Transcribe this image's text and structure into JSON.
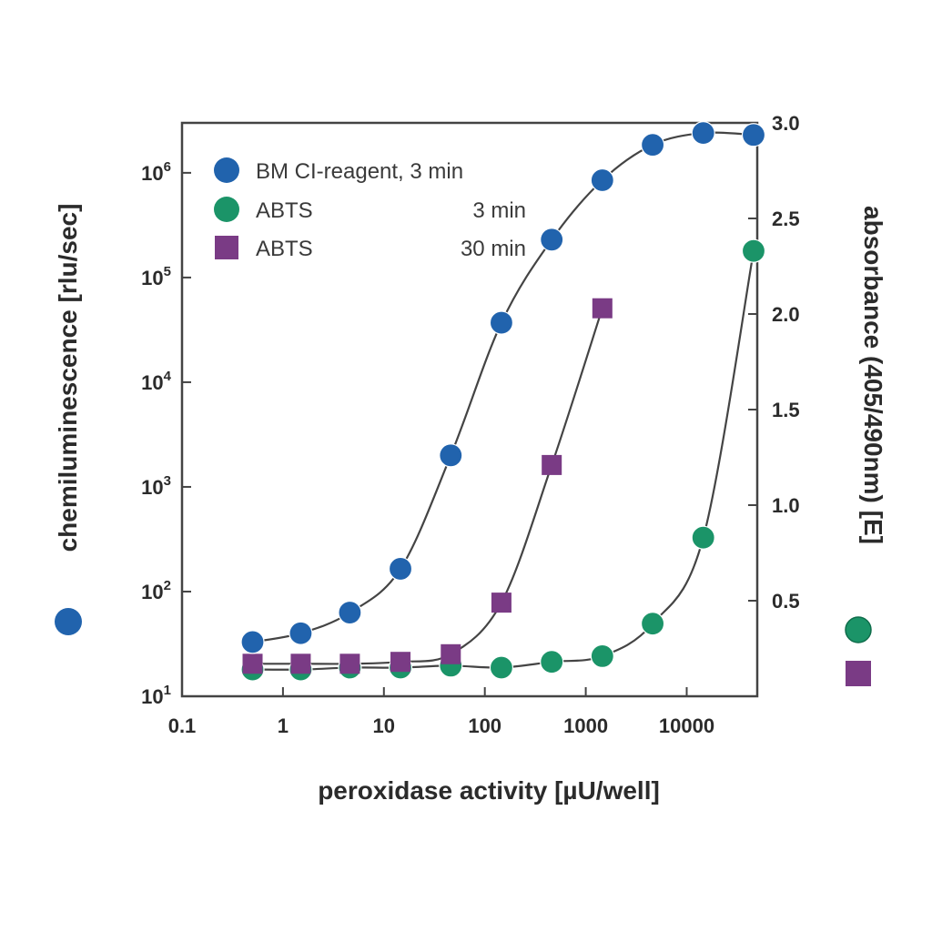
{
  "chart_data": {
    "type": "scatter",
    "xlabel": "peroxidase activity [µU/well]",
    "ylabel_left": "chemiluminescence [rlu/sec]",
    "ylabel_right": "absorbance (405/490nm) [E]",
    "x_scale": "log",
    "x_range": [
      0.1,
      50000
    ],
    "x_ticks": [
      0.1,
      1,
      10,
      100,
      1000,
      10000
    ],
    "x_tick_labels": [
      "0.1",
      "1",
      "10",
      "100",
      "1000",
      "10000"
    ],
    "y_left_scale": "log",
    "y_left_range": [
      10,
      3000000
    ],
    "y_left_ticks": [
      10,
      100,
      1000,
      10000,
      100000,
      1000000
    ],
    "y_left_tick_base": "10",
    "y_left_tick_exponents": [
      "1",
      "2",
      "3",
      "4",
      "5",
      "6"
    ],
    "y_right_range": [
      0,
      3.0
    ],
    "y_right_ticks": [
      0.5,
      1.0,
      1.5,
      2.0,
      2.5,
      3.0
    ],
    "y_right_tick_labels": [
      "0.5",
      "1.0",
      "1.5",
      "2.0",
      "2.5",
      "3.0"
    ],
    "grid": false,
    "legend_position": "top-left",
    "series": [
      {
        "name": "BM CI-reagent, 3 min",
        "legend_time": "",
        "axis": "left",
        "marker": "circle",
        "color": "#2163ad",
        "x": [
          0.5,
          1.5,
          4.6,
          14.6,
          46,
          146,
          460,
          1460,
          4600,
          14600,
          46000
        ],
        "y": [
          33,
          40,
          63,
          165,
          2000,
          37000,
          230000,
          850000,
          1850000,
          2400000,
          2300000
        ]
      },
      {
        "name": "ABTS",
        "legend_time": "3 min",
        "axis": "right",
        "marker": "circle",
        "color": "#1b9468",
        "x": [
          0.5,
          1.5,
          4.6,
          14.6,
          46,
          146,
          460,
          1460,
          4600,
          14600,
          46000
        ],
        "y": [
          0.14,
          0.14,
          0.15,
          0.15,
          0.16,
          0.15,
          0.18,
          0.21,
          0.38,
          0.83,
          2.33
        ]
      },
      {
        "name": "ABTS",
        "legend_time": "30 min",
        "axis": "right",
        "marker": "square",
        "color": "#7a3b85",
        "x": [
          0.5,
          1.5,
          4.6,
          14.6,
          46,
          146,
          460,
          1460
        ],
        "y": [
          0.17,
          0.17,
          0.17,
          0.18,
          0.22,
          0.49,
          1.21,
          2.03
        ]
      }
    ]
  }
}
